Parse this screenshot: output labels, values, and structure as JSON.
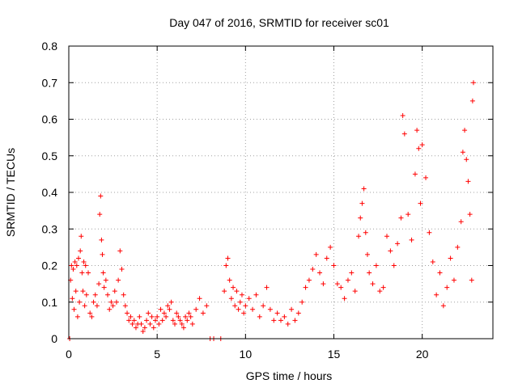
{
  "chart_data": {
    "type": "scatter",
    "title": "Day 047 of 2016, SRMTID for receiver sc01",
    "xlabel": "GPS time / hours",
    "ylabel": "SRMTID / TECUs",
    "xlim": [
      0,
      24
    ],
    "ylim": [
      0,
      0.8
    ],
    "xticks": [
      0,
      5,
      10,
      15,
      20
    ],
    "xtick_labels": [
      "0",
      "5",
      "10",
      "15",
      "20"
    ],
    "yticks": [
      0,
      0.1,
      0.2,
      0.3,
      0.4,
      0.5,
      0.6,
      0.7,
      0.8
    ],
    "ytick_labels": [
      "0",
      "0.1",
      "0.2",
      "0.3",
      "0.4",
      "0.5",
      "0.6",
      "0.7",
      "0.8"
    ],
    "grid": true,
    "marker": "plus",
    "color": "#ff0000",
    "series": [
      {
        "name": "SRMTID",
        "points": [
          [
            0.05,
            0.0
          ],
          [
            0.1,
            0.16
          ],
          [
            0.15,
            0.2
          ],
          [
            0.2,
            0.11
          ],
          [
            0.25,
            0.19
          ],
          [
            0.3,
            0.08
          ],
          [
            0.35,
            0.21
          ],
          [
            0.4,
            0.13
          ],
          [
            0.45,
            0.2
          ],
          [
            0.5,
            0.06
          ],
          [
            0.55,
            0.22
          ],
          [
            0.6,
            0.1
          ],
          [
            0.65,
            0.24
          ],
          [
            0.7,
            0.28
          ],
          [
            0.75,
            0.18
          ],
          [
            0.8,
            0.13
          ],
          [
            0.85,
            0.21
          ],
          [
            0.9,
            0.09
          ],
          [
            0.95,
            0.2
          ],
          [
            1.0,
            0.12
          ],
          [
            1.1,
            0.18
          ],
          [
            1.2,
            0.07
          ],
          [
            1.3,
            0.06
          ],
          [
            1.4,
            0.1
          ],
          [
            1.5,
            0.12
          ],
          [
            1.6,
            0.09
          ],
          [
            1.7,
            0.15
          ],
          [
            1.75,
            0.34
          ],
          [
            1.8,
            0.39
          ],
          [
            1.85,
            0.27
          ],
          [
            1.9,
            0.23
          ],
          [
            1.95,
            0.18
          ],
          [
            2.0,
            0.14
          ],
          [
            2.1,
            0.16
          ],
          [
            2.2,
            0.12
          ],
          [
            2.3,
            0.08
          ],
          [
            2.4,
            0.1
          ],
          [
            2.5,
            0.09
          ],
          [
            2.6,
            0.13
          ],
          [
            2.7,
            0.1
          ],
          [
            2.8,
            0.16
          ],
          [
            2.9,
            0.24
          ],
          [
            3.0,
            0.19
          ],
          [
            3.1,
            0.12
          ],
          [
            3.2,
            0.09
          ],
          [
            3.3,
            0.07
          ],
          [
            3.4,
            0.05
          ],
          [
            3.5,
            0.06
          ],
          [
            3.6,
            0.04
          ],
          [
            3.7,
            0.05
          ],
          [
            3.8,
            0.03
          ],
          [
            3.9,
            0.04
          ],
          [
            4.0,
            0.06
          ],
          [
            4.1,
            0.04
          ],
          [
            4.2,
            0.02
          ],
          [
            4.3,
            0.03
          ],
          [
            4.4,
            0.05
          ],
          [
            4.5,
            0.07
          ],
          [
            4.6,
            0.04
          ],
          [
            4.7,
            0.06
          ],
          [
            4.8,
            0.03
          ],
          [
            4.9,
            0.05
          ],
          [
            5.0,
            0.06
          ],
          [
            5.1,
            0.04
          ],
          [
            5.2,
            0.08
          ],
          [
            5.3,
            0.05
          ],
          [
            5.4,
            0.07
          ],
          [
            5.5,
            0.06
          ],
          [
            5.6,
            0.09
          ],
          [
            5.7,
            0.08
          ],
          [
            5.8,
            0.1
          ],
          [
            5.9,
            0.05
          ],
          [
            6.0,
            0.04
          ],
          [
            6.1,
            0.07
          ],
          [
            6.2,
            0.06
          ],
          [
            6.3,
            0.05
          ],
          [
            6.4,
            0.04
          ],
          [
            6.5,
            0.03
          ],
          [
            6.6,
            0.06
          ],
          [
            6.7,
            0.05
          ],
          [
            6.8,
            0.07
          ],
          [
            6.9,
            0.06
          ],
          [
            7.0,
            0.04
          ],
          [
            7.2,
            0.08
          ],
          [
            7.4,
            0.11
          ],
          [
            7.6,
            0.07
          ],
          [
            7.8,
            0.09
          ],
          [
            8.0,
            0.0
          ],
          [
            8.2,
            0.0
          ],
          [
            8.6,
            0.0
          ],
          [
            8.8,
            0.13
          ],
          [
            8.9,
            0.2
          ],
          [
            9.0,
            0.22
          ],
          [
            9.1,
            0.16
          ],
          [
            9.2,
            0.11
          ],
          [
            9.3,
            0.14
          ],
          [
            9.4,
            0.09
          ],
          [
            9.5,
            0.13
          ],
          [
            9.6,
            0.08
          ],
          [
            9.7,
            0.1
          ],
          [
            9.8,
            0.12
          ],
          [
            9.9,
            0.07
          ],
          [
            10.0,
            0.09
          ],
          [
            10.2,
            0.11
          ],
          [
            10.4,
            0.08
          ],
          [
            10.6,
            0.12
          ],
          [
            10.8,
            0.06
          ],
          [
            11.0,
            0.09
          ],
          [
            11.2,
            0.14
          ],
          [
            11.4,
            0.08
          ],
          [
            11.6,
            0.05
          ],
          [
            11.8,
            0.07
          ],
          [
            12.0,
            0.05
          ],
          [
            12.2,
            0.06
          ],
          [
            12.4,
            0.04
          ],
          [
            12.6,
            0.08
          ],
          [
            12.8,
            0.05
          ],
          [
            13.0,
            0.07
          ],
          [
            13.2,
            0.1
          ],
          [
            13.4,
            0.14
          ],
          [
            13.6,
            0.16
          ],
          [
            13.8,
            0.19
          ],
          [
            14.0,
            0.23
          ],
          [
            14.2,
            0.18
          ],
          [
            14.4,
            0.15
          ],
          [
            14.6,
            0.22
          ],
          [
            14.8,
            0.25
          ],
          [
            15.0,
            0.2
          ],
          [
            15.2,
            0.15
          ],
          [
            15.4,
            0.14
          ],
          [
            15.6,
            0.11
          ],
          [
            15.8,
            0.16
          ],
          [
            16.0,
            0.18
          ],
          [
            16.2,
            0.13
          ],
          [
            16.4,
            0.28
          ],
          [
            16.5,
            0.33
          ],
          [
            16.6,
            0.37
          ],
          [
            16.7,
            0.41
          ],
          [
            16.8,
            0.29
          ],
          [
            16.9,
            0.23
          ],
          [
            17.0,
            0.18
          ],
          [
            17.2,
            0.15
          ],
          [
            17.4,
            0.2
          ],
          [
            17.6,
            0.13
          ],
          [
            17.8,
            0.14
          ],
          [
            18.0,
            0.28
          ],
          [
            18.2,
            0.24
          ],
          [
            18.4,
            0.2
          ],
          [
            18.6,
            0.26
          ],
          [
            18.8,
            0.33
          ],
          [
            18.9,
            0.61
          ],
          [
            19.0,
            0.56
          ],
          [
            19.2,
            0.34
          ],
          [
            19.4,
            0.27
          ],
          [
            19.6,
            0.45
          ],
          [
            19.7,
            0.57
          ],
          [
            19.8,
            0.52
          ],
          [
            19.9,
            0.37
          ],
          [
            20.0,
            0.53
          ],
          [
            20.2,
            0.44
          ],
          [
            20.4,
            0.29
          ],
          [
            20.6,
            0.21
          ],
          [
            20.8,
            0.12
          ],
          [
            21.0,
            0.18
          ],
          [
            21.2,
            0.09
          ],
          [
            21.4,
            0.14
          ],
          [
            21.6,
            0.22
          ],
          [
            21.8,
            0.16
          ],
          [
            22.0,
            0.25
          ],
          [
            22.2,
            0.32
          ],
          [
            22.3,
            0.51
          ],
          [
            22.4,
            0.57
          ],
          [
            22.5,
            0.49
          ],
          [
            22.6,
            0.43
          ],
          [
            22.7,
            0.34
          ],
          [
            22.8,
            0.16
          ],
          [
            22.85,
            0.65
          ],
          [
            22.9,
            0.7
          ]
        ]
      }
    ]
  }
}
